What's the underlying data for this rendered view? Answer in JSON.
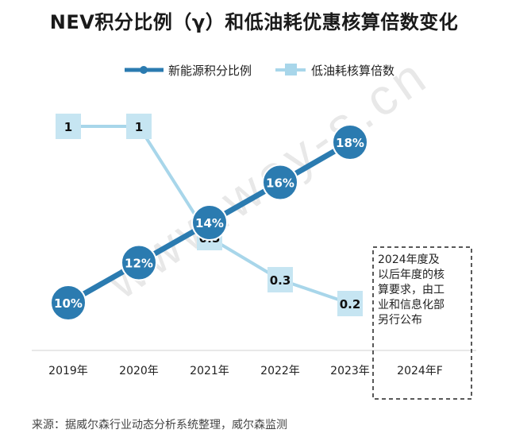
{
  "chart_data": {
    "type": "line",
    "title": "NEV积分比例（γ）和低油耗优惠核算倍数变化",
    "categories": [
      "2019年",
      "2020年",
      "2021年",
      "2022年",
      "2023年",
      "2024年F"
    ],
    "series": [
      {
        "name": "新能源积分比例",
        "values": [
          10,
          12,
          14,
          16,
          18,
          null
        ],
        "labels": [
          "10%",
          "12%",
          "14%",
          "16%",
          "18%",
          ""
        ],
        "color": "#2b7bb0",
        "marker": "circle"
      },
      {
        "name": "低油耗核算倍数",
        "values": [
          1,
          1,
          0.5,
          0.3,
          0.2,
          null
        ],
        "labels": [
          "1",
          "1",
          "0.5",
          "0.3",
          "0.2",
          ""
        ],
        "color": "#a8d6ea",
        "marker": "square"
      }
    ],
    "legend_position": "top-center",
    "annotation": "2024年度及\n以后年度的核\n算要求，由工\n业和信息化部\n另行公布",
    "source": "来源：据威尔森行业动态分析系统整理，威尔森监测",
    "watermark": "www.way-s.cn"
  }
}
